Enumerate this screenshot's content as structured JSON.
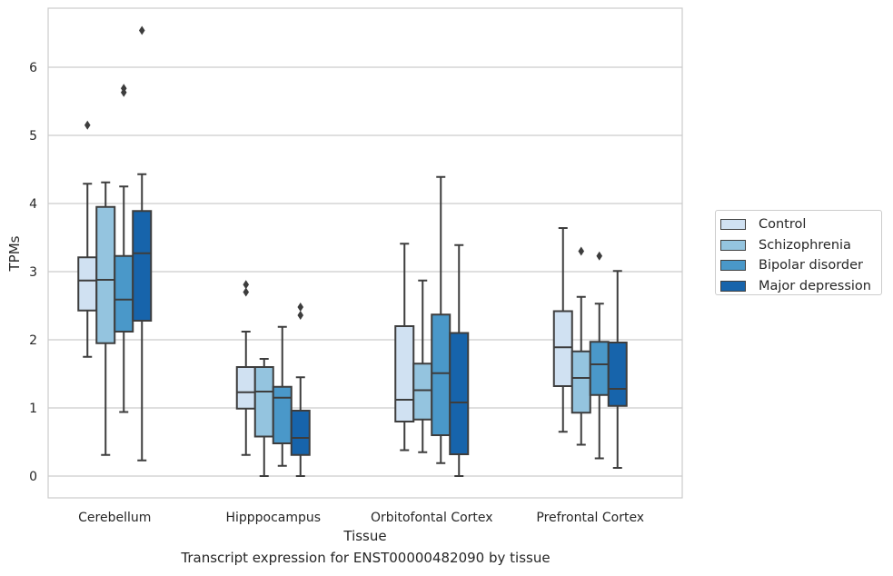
{
  "chart_data": {
    "type": "box",
    "title": "Transcript expression for ENST00000482090 by tissue",
    "xlabel": "Tissue",
    "ylabel": "TPMs",
    "ylim": [
      -0.3,
      6.87
    ],
    "yticks": [
      0,
      1,
      2,
      3,
      4,
      5,
      6
    ],
    "grid": "horizontal",
    "legend_position": "right",
    "categories": [
      "Cerebellum",
      "Hipppocampus",
      "Orbitofontal Cortex",
      "Prefrontal Cortex"
    ],
    "series": [
      {
        "name": "Control",
        "color": "#d0e1f2",
        "boxes": [
          {
            "whislo": 1.75,
            "q1": 2.43,
            "med": 2.87,
            "q3": 3.21,
            "whishi": 4.29,
            "fliers": [
              5.15
            ]
          },
          {
            "whislo": 0.31,
            "q1": 0.99,
            "med": 1.23,
            "q3": 1.6,
            "whishi": 2.12,
            "fliers": [
              2.7,
              2.81
            ]
          },
          {
            "whislo": 0.38,
            "q1": 0.8,
            "med": 1.12,
            "q3": 2.2,
            "whishi": 3.41,
            "fliers": []
          },
          {
            "whislo": 0.65,
            "q1": 1.32,
            "med": 1.89,
            "q3": 2.42,
            "whishi": 3.64,
            "fliers": []
          }
        ]
      },
      {
        "name": "Schizophrenia",
        "color": "#94c4df",
        "boxes": [
          {
            "whislo": 0.31,
            "q1": 1.95,
            "med": 2.88,
            "q3": 3.95,
            "whishi": 4.31,
            "fliers": []
          },
          {
            "whislo": 0.0,
            "q1": 0.58,
            "med": 1.24,
            "q3": 1.6,
            "whishi": 1.72,
            "fliers": []
          },
          {
            "whislo": 0.35,
            "q1": 0.83,
            "med": 1.26,
            "q3": 1.65,
            "whishi": 2.87,
            "fliers": []
          },
          {
            "whislo": 0.46,
            "q1": 0.93,
            "med": 1.44,
            "q3": 1.83,
            "whishi": 2.63,
            "fliers": [
              3.3
            ]
          }
        ]
      },
      {
        "name": "Bipolar disorder",
        "color": "#4a98c9",
        "boxes": [
          {
            "whislo": 0.94,
            "q1": 2.12,
            "med": 2.59,
            "q3": 3.23,
            "whishi": 4.25,
            "fliers": [
              5.63,
              5.69
            ]
          },
          {
            "whislo": 0.15,
            "q1": 0.48,
            "med": 1.15,
            "q3": 1.31,
            "whishi": 2.19,
            "fliers": []
          },
          {
            "whislo": 0.19,
            "q1": 0.6,
            "med": 1.51,
            "q3": 2.37,
            "whishi": 4.39,
            "fliers": []
          },
          {
            "whislo": 0.26,
            "q1": 1.19,
            "med": 1.64,
            "q3": 1.97,
            "whishi": 2.53,
            "fliers": [
              3.23
            ]
          }
        ]
      },
      {
        "name": "Major depression",
        "color": "#1764ab",
        "boxes": [
          {
            "whislo": 0.23,
            "q1": 2.28,
            "med": 3.27,
            "q3": 3.89,
            "whishi": 4.43,
            "fliers": [
              6.54
            ]
          },
          {
            "whislo": 0.0,
            "q1": 0.31,
            "med": 0.56,
            "q3": 0.96,
            "whishi": 1.45,
            "fliers": [
              2.36,
              2.48
            ]
          },
          {
            "whislo": 0.0,
            "q1": 0.32,
            "med": 1.08,
            "q3": 2.1,
            "whishi": 3.39,
            "fliers": []
          },
          {
            "whislo": 0.12,
            "q1": 1.03,
            "med": 1.28,
            "q3": 1.96,
            "whishi": 3.01,
            "fliers": []
          }
        ]
      }
    ]
  }
}
